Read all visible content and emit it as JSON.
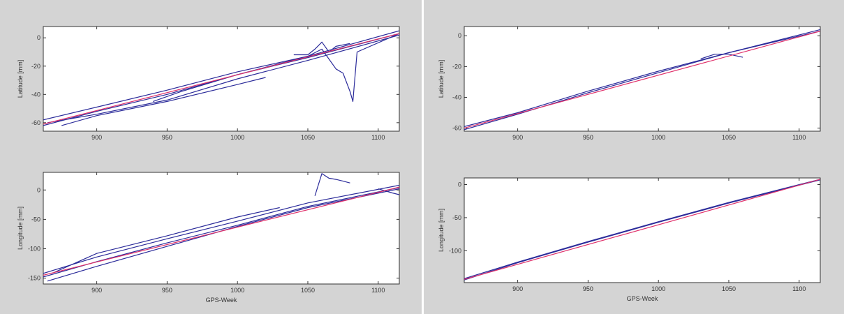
{
  "colors": {
    "observed": "#2b2b9a",
    "trend": "#e0306a",
    "background": "#d4d4d4"
  },
  "chart_data": [
    {
      "type": "line",
      "title": "",
      "xlabel": "",
      "ylabel": "Latitude [mm]",
      "xlim": [
        862,
        1115
      ],
      "ylim": [
        -66,
        8
      ],
      "xticks": [
        900,
        950,
        1000,
        1050,
        1100
      ],
      "yticks": [
        0,
        -20,
        -40,
        -60
      ],
      "series": [
        {
          "x": [
            862,
            900,
            950,
            1000,
            1050,
            1115
          ],
          "y": [
            -62,
            -52,
            -40,
            -26,
            -14,
            3
          ]
        },
        {
          "x": [
            862,
            900,
            950,
            1000,
            1050,
            1115
          ],
          "y": [
            -58,
            -49,
            -37,
            -24,
            -13,
            5
          ]
        },
        {
          "x": [
            865,
            900,
            950,
            1000,
            1050,
            1115
          ],
          "y": [
            -60,
            -54,
            -44,
            -29,
            -16,
            2
          ]
        },
        {
          "x": [
            875,
            900,
            950,
            1000,
            1020
          ],
          "y": [
            -62,
            -55,
            -45,
            -33,
            -28
          ]
        },
        {
          "x": [
            940,
            960,
            1000,
            1050,
            1060,
            1065,
            1070,
            1075,
            1080,
            1082,
            1085,
            1115
          ],
          "y": [
            -45,
            -38,
            -26,
            -13,
            -8,
            -15,
            -22,
            -25,
            -38,
            -45,
            -10,
            3
          ]
        },
        {
          "x": [
            1040,
            1050,
            1055,
            1060,
            1065,
            1070,
            1080
          ],
          "y": [
            -12,
            -12,
            -8,
            -3,
            -10,
            -6,
            -4
          ]
        }
      ],
      "trend": {
        "x": [
          862,
          1115
        ],
        "y": [
          -61,
          3
        ]
      }
    },
    {
      "type": "line",
      "title": "",
      "xlabel": "GPS-Week",
      "ylabel": "Longitude [mm]",
      "xlim": [
        862,
        1115
      ],
      "ylim": [
        -160,
        30
      ],
      "xticks": [
        900,
        950,
        1000,
        1050,
        1100
      ],
      "yticks": [
        0,
        -50,
        -100,
        -150
      ],
      "series": [
        {
          "x": [
            862,
            900,
            950,
            1000,
            1050,
            1115
          ],
          "y": [
            -142,
            -114,
            -83,
            -53,
            -22,
            8
          ]
        },
        {
          "x": [
            862,
            900,
            950,
            1000,
            1050,
            1115
          ],
          "y": [
            -148,
            -122,
            -90,
            -60,
            -28,
            4
          ]
        },
        {
          "x": [
            865,
            900,
            950,
            1000,
            1050,
            1115
          ],
          "y": [
            -155,
            -130,
            -96,
            -62,
            -30,
            2
          ]
        },
        {
          "x": [
            870,
            900,
            950,
            1000,
            1030
          ],
          "y": [
            -140,
            -108,
            -78,
            -46,
            -30
          ]
        },
        {
          "x": [
            1055,
            1060,
            1065,
            1070,
            1075,
            1080
          ],
          "y": [
            -10,
            28,
            20,
            18,
            15,
            12
          ]
        },
        {
          "x": [
            1100,
            1110,
            1115
          ],
          "y": [
            2,
            -5,
            -8
          ]
        }
      ],
      "trend": {
        "x": [
          862,
          1115
        ],
        "y": [
          -145,
          5
        ]
      }
    },
    {
      "type": "line",
      "title": "",
      "xlabel": "",
      "ylabel": "Latitude [mm]",
      "xlim": [
        862,
        1115
      ],
      "ylim": [
        -62,
        6
      ],
      "xticks": [
        900,
        950,
        1000,
        1050,
        1100
      ],
      "yticks": [
        0,
        -20,
        -40,
        -60
      ],
      "series": [
        {
          "x": [
            862,
            900,
            950,
            1000,
            1050,
            1115
          ],
          "y": [
            -61,
            -51,
            -37,
            -24,
            -11,
            4
          ]
        },
        {
          "x": [
            862,
            900,
            950,
            1000,
            1050,
            1115
          ],
          "y": [
            -59,
            -50,
            -36,
            -23,
            -11,
            3
          ]
        },
        {
          "x": [
            1030,
            1040,
            1050,
            1060
          ],
          "y": [
            -15,
            -12,
            -12,
            -14
          ]
        }
      ],
      "trend": {
        "x": [
          862,
          1115
        ],
        "y": [
          -60,
          3
        ]
      }
    },
    {
      "type": "line",
      "title": "",
      "xlabel": "GPS-Week",
      "ylabel": "Longitude [mm]",
      "xlim": [
        862,
        1115
      ],
      "ylim": [
        -148,
        10
      ],
      "xticks": [
        900,
        950,
        1000,
        1050,
        1100
      ],
      "yticks": [
        0,
        -50,
        -100
      ],
      "series": [
        {
          "x": [
            862,
            900,
            950,
            1000,
            1050,
            1115
          ],
          "y": [
            -144,
            -118,
            -87,
            -57,
            -28,
            7
          ]
        },
        {
          "x": [
            862,
            900,
            950,
            1000,
            1050,
            1115
          ],
          "y": [
            -142,
            -117,
            -86,
            -56,
            -27,
            8
          ]
        }
      ],
      "trend": {
        "x": [
          862,
          1115
        ],
        "y": [
          -143,
          8
        ]
      }
    }
  ]
}
